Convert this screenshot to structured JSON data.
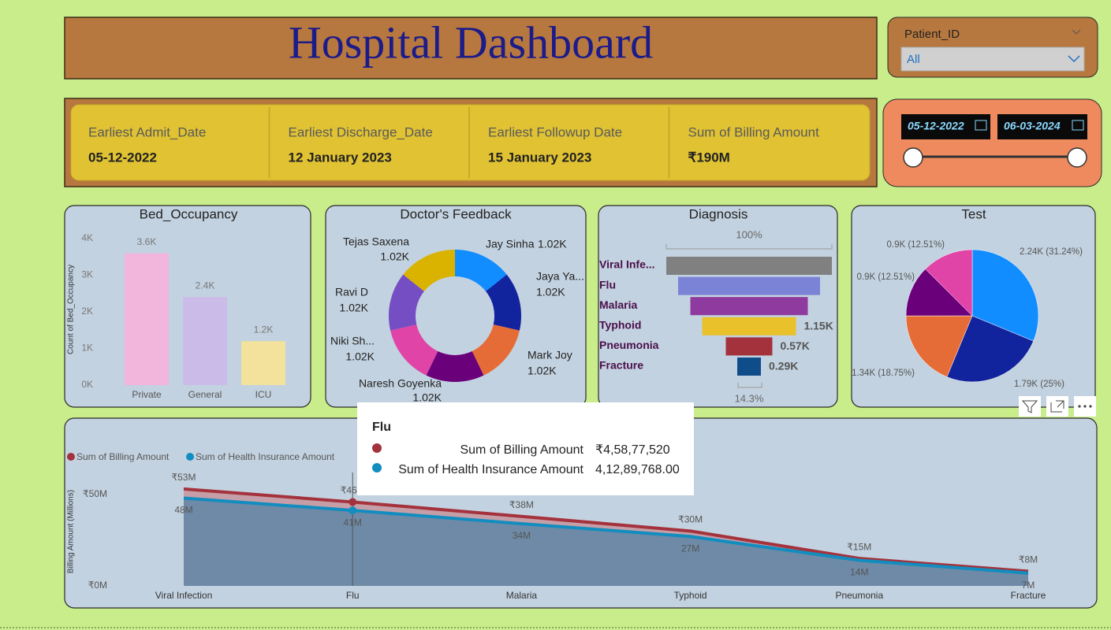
{
  "header": {
    "title": "Hospital Dashboard"
  },
  "slicer": {
    "label": "Patient_ID",
    "value": "All"
  },
  "date_range": {
    "start": "05-12-2022",
    "end": "06-03-2024"
  },
  "cards": [
    {
      "label": "Earliest Admit_Date",
      "value": "05-12-2022"
    },
    {
      "label": "Earliest Discharge_Date",
      "value": "12 January 2023"
    },
    {
      "label": "Earliest Followup Date",
      "value": "15 January 2023"
    },
    {
      "label": "Sum of Billing Amount",
      "value": "₹190M"
    }
  ],
  "chart_data": [
    {
      "type": "bar",
      "title": "Bed_Occupancy",
      "y_label": "Count of Bed_Occupancy",
      "categories": [
        "Private",
        "General",
        "ICU"
      ],
      "values": [
        3600,
        2400,
        1200
      ],
      "value_labels": [
        "3.6K",
        "2.4K",
        "1.2K"
      ],
      "colors": [
        "#f2b5dc",
        "#cbbbe9",
        "#f2e29c"
      ],
      "ylim": [
        0,
        4000
      ],
      "yticks": [
        {
          "value": 0,
          "label": "0K"
        },
        {
          "value": 1000,
          "label": "1K"
        },
        {
          "value": 2000,
          "label": "2K"
        },
        {
          "value": 3000,
          "label": "3K"
        },
        {
          "value": 4000,
          "label": "4K"
        }
      ]
    },
    {
      "type": "donut",
      "title": "Doctor's Feedback",
      "categories": [
        "Jay Sinha",
        "Jaya Ya...",
        "Mark Joy",
        "Naresh Goyenka",
        "Niki Sh...",
        "Ravi D",
        "Tejas Saxena"
      ],
      "values": [
        1020,
        1020,
        1020,
        1020,
        1020,
        1020,
        1020
      ],
      "value_labels": [
        "1.02K",
        "1.02K",
        "1.02K",
        "1.02K",
        "1.02K",
        "1.02K",
        "1.02K"
      ],
      "colors": [
        "#118dff",
        "#12239e",
        "#e66c37",
        "#6b007b",
        "#e044a7",
        "#744ec2",
        "#d9b300"
      ]
    },
    {
      "type": "funnel",
      "title": "Diagnosis",
      "top_label": "100%",
      "bottom_label": "14.3%",
      "categories": [
        "Viral Infe...",
        "Flu",
        "Malaria",
        "Typhoid",
        "Pneumonia",
        "Fracture"
      ],
      "values": [
        2030,
        1740,
        1440,
        1150,
        570,
        290
      ],
      "value_labels": [
        null,
        null,
        null,
        "1.15K",
        "0.57K",
        "0.29K"
      ],
      "colors": [
        "#808080",
        "#7b83d6",
        "#8e3a9e",
        "#e8c12b",
        "#a4323c",
        "#0f4c8a"
      ]
    },
    {
      "type": "pie",
      "title": "Test",
      "values": [
        2241,
        1793,
        1345,
        897,
        897
      ],
      "value_labels": [
        "2.24K (31.24%)",
        "1.79K (25%)",
        "1.34K (18.75%)",
        "0.9K (12.51%)",
        "0.9K (12.51%)"
      ],
      "colors": [
        "#118dff",
        "#12239e",
        "#e66c37",
        "#6b007b",
        "#e044a7"
      ]
    },
    {
      "type": "area",
      "y_label": "Billing Amount (Millions)",
      "legend": "top-left",
      "categories": [
        "Viral Infection",
        "Flu",
        "Malaria",
        "Typhoid",
        "Pneumonia",
        "Fracture"
      ],
      "series": [
        {
          "name": "Sum of Billing Amount",
          "color": "#a4323c",
          "values": [
            53000000,
            45877520,
            38000000,
            30000000,
            15000000,
            8000000
          ],
          "value_labels": [
            "₹53M",
            "₹46M",
            "₹38M",
            "₹30M",
            "₹15M",
            "₹8M"
          ]
        },
        {
          "name": "Sum of Health Insurance Amount",
          "color": "#118dbf",
          "values": [
            48000000,
            41289768,
            34000000,
            27000000,
            14000000,
            7000000
          ],
          "value_labels": [
            "48M",
            "41M",
            "34M",
            "27M",
            "14M",
            "7M"
          ]
        }
      ],
      "ylim": [
        0,
        62000000
      ],
      "yticks": [
        {
          "value": 0,
          "label": "₹0M"
        },
        {
          "value": 50000000,
          "label": "₹50M"
        }
      ]
    }
  ],
  "tooltip": {
    "title": "Flu",
    "rows": [
      {
        "name": "Sum of Billing Amount",
        "value": "₹4,58,77,520"
      },
      {
        "name": "Sum of Health Insurance Amount",
        "value": "4,12,89,768.00"
      }
    ]
  }
}
